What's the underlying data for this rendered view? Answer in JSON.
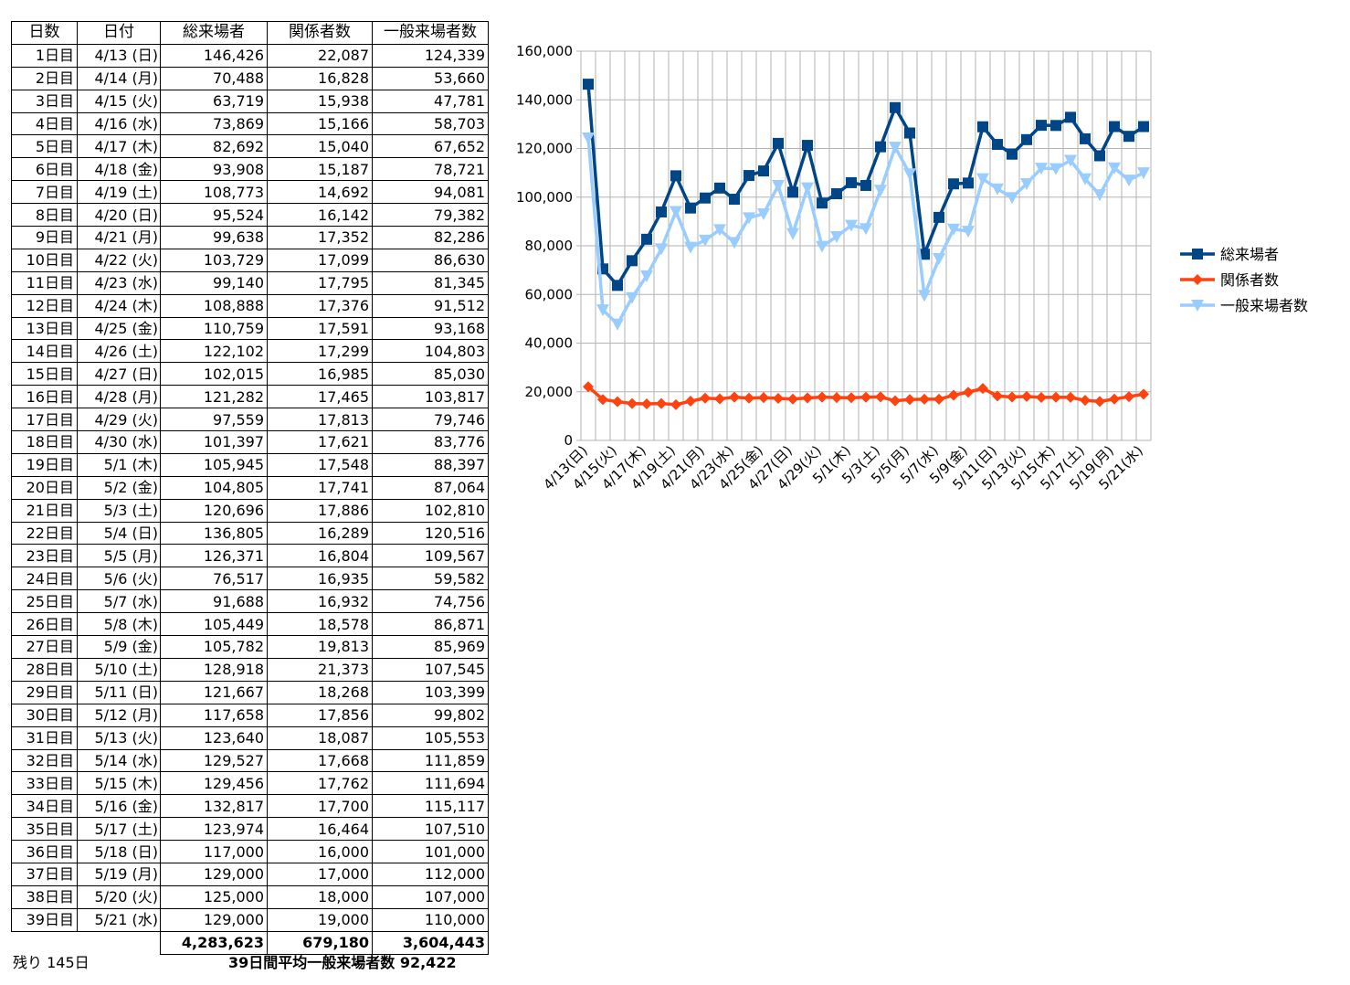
{
  "table": {
    "headers": [
      "日数",
      "日付",
      "総来場者",
      "関係者数",
      "一般来場者数"
    ],
    "rows": [
      [
        "1日目",
        "4/13 (日)",
        "146,426",
        "22,087",
        "124,339"
      ],
      [
        "2日目",
        "4/14 (月)",
        "70,488",
        "16,828",
        "53,660"
      ],
      [
        "3日目",
        "4/15 (火)",
        "63,719",
        "15,938",
        "47,781"
      ],
      [
        "4日目",
        "4/16 (水)",
        "73,869",
        "15,166",
        "58,703"
      ],
      [
        "5日目",
        "4/17 (木)",
        "82,692",
        "15,040",
        "67,652"
      ],
      [
        "6日目",
        "4/18 (金)",
        "93,908",
        "15,187",
        "78,721"
      ],
      [
        "7日目",
        "4/19 (土)",
        "108,773",
        "14,692",
        "94,081"
      ],
      [
        "8日目",
        "4/20 (日)",
        "95,524",
        "16,142",
        "79,382"
      ],
      [
        "9日目",
        "4/21 (月)",
        "99,638",
        "17,352",
        "82,286"
      ],
      [
        "10日目",
        "4/22 (火)",
        "103,729",
        "17,099",
        "86,630"
      ],
      [
        "11日目",
        "4/23 (水)",
        "99,140",
        "17,795",
        "81,345"
      ],
      [
        "12日目",
        "4/24 (木)",
        "108,888",
        "17,376",
        "91,512"
      ],
      [
        "13日目",
        "4/25 (金)",
        "110,759",
        "17,591",
        "93,168"
      ],
      [
        "14日目",
        "4/26 (土)",
        "122,102",
        "17,299",
        "104,803"
      ],
      [
        "15日目",
        "4/27 (日)",
        "102,015",
        "16,985",
        "85,030"
      ],
      [
        "16日目",
        "4/28 (月)",
        "121,282",
        "17,465",
        "103,817"
      ],
      [
        "17日目",
        "4/29 (火)",
        "97,559",
        "17,813",
        "79,746"
      ],
      [
        "18日目",
        "4/30 (水)",
        "101,397",
        "17,621",
        "83,776"
      ],
      [
        "19日目",
        "5/1 (木)",
        "105,945",
        "17,548",
        "88,397"
      ],
      [
        "20日目",
        "5/2 (金)",
        "104,805",
        "17,741",
        "87,064"
      ],
      [
        "21日目",
        "5/3 (土)",
        "120,696",
        "17,886",
        "102,810"
      ],
      [
        "22日目",
        "5/4 (日)",
        "136,805",
        "16,289",
        "120,516"
      ],
      [
        "23日目",
        "5/5 (月)",
        "126,371",
        "16,804",
        "109,567"
      ],
      [
        "24日目",
        "5/6 (火)",
        "76,517",
        "16,935",
        "59,582"
      ],
      [
        "25日目",
        "5/7 (水)",
        "91,688",
        "16,932",
        "74,756"
      ],
      [
        "26日目",
        "5/8 (木)",
        "105,449",
        "18,578",
        "86,871"
      ],
      [
        "27日目",
        "5/9 (金)",
        "105,782",
        "19,813",
        "85,969"
      ],
      [
        "28日目",
        "5/10 (土)",
        "128,918",
        "21,373",
        "107,545"
      ],
      [
        "29日目",
        "5/11 (日)",
        "121,667",
        "18,268",
        "103,399"
      ],
      [
        "30日目",
        "5/12 (月)",
        "117,658",
        "17,856",
        "99,802"
      ],
      [
        "31日目",
        "5/13 (火)",
        "123,640",
        "18,087",
        "105,553"
      ],
      [
        "32日目",
        "5/14 (水)",
        "129,527",
        "17,668",
        "111,859"
      ],
      [
        "33日目",
        "5/15 (木)",
        "129,456",
        "17,762",
        "111,694"
      ],
      [
        "34日目",
        "5/16 (金)",
        "132,817",
        "17,700",
        "115,117"
      ],
      [
        "35日目",
        "5/17 (土)",
        "123,974",
        "16,464",
        "107,510"
      ],
      [
        "36日目",
        "5/18 (日)",
        "117,000",
        "16,000",
        "101,000"
      ],
      [
        "37日目",
        "5/19 (月)",
        "129,000",
        "17,000",
        "112,000"
      ],
      [
        "38日目",
        "5/20 (火)",
        "125,000",
        "18,000",
        "107,000"
      ],
      [
        "39日目",
        "5/21 (水)",
        "129,000",
        "19,000",
        "110,000"
      ]
    ],
    "totals": [
      "4,283,623",
      "679,180",
      "3,604,443"
    ]
  },
  "footer": {
    "remaining": "残り 145日",
    "average": "39日間平均一般来場者数 92,422"
  },
  "chart_data": {
    "type": "line",
    "ylim": [
      0,
      160000
    ],
    "yticks": [
      "0",
      "20,000",
      "40,000",
      "60,000",
      "80,000",
      "100,000",
      "120,000",
      "140,000",
      "160,000"
    ],
    "ytick_values": [
      0,
      20000,
      40000,
      60000,
      80000,
      100000,
      120000,
      140000,
      160000
    ],
    "grid": true,
    "legend_position": "right",
    "x": [
      "4/13(日)",
      "4/14(月)",
      "4/15(火)",
      "4/16(水)",
      "4/17(木)",
      "4/18(金)",
      "4/19(土)",
      "4/20(日)",
      "4/21(月)",
      "4/22(火)",
      "4/23(水)",
      "4/24(木)",
      "4/25(金)",
      "4/26(土)",
      "4/27(日)",
      "4/28(月)",
      "4/29(火)",
      "4/30(水)",
      "5/1(木)",
      "5/2(金)",
      "5/3(土)",
      "5/4(日)",
      "5/5(月)",
      "5/6(火)",
      "5/7(水)",
      "5/8(木)",
      "5/9(金)",
      "5/10(土)",
      "5/11(日)",
      "5/12(月)",
      "5/13(火)",
      "5/14(水)",
      "5/15(木)",
      "5/16(金)",
      "5/17(土)",
      "5/18(日)",
      "5/19(月)",
      "5/20(火)",
      "5/21(水)"
    ],
    "xtick_labels": [
      "4/13(日)",
      "4/15(火)",
      "4/17(木)",
      "4/19(土)",
      "4/21(月)",
      "4/23(水)",
      "4/25(金)",
      "4/27(日)",
      "4/29(火)",
      "5/1(木)",
      "5/3(土)",
      "5/5(月)",
      "5/7(水)",
      "5/9(金)",
      "5/11(日)",
      "5/13(火)",
      "5/15(木)",
      "5/17(土)",
      "5/19(月)",
      "5/21(水)"
    ],
    "series": [
      {
        "name": "総来場者",
        "color": "#004586",
        "marker": "square",
        "values": [
          146426,
          70488,
          63719,
          73869,
          82692,
          93908,
          108773,
          95524,
          99638,
          103729,
          99140,
          108888,
          110759,
          122102,
          102015,
          121282,
          97559,
          101397,
          105945,
          104805,
          120696,
          136805,
          126371,
          76517,
          91688,
          105449,
          105782,
          128918,
          121667,
          117658,
          123640,
          129527,
          129456,
          132817,
          123974,
          117000,
          129000,
          125000,
          129000
        ]
      },
      {
        "name": "関係者数",
        "color": "#ff420e",
        "marker": "diamond",
        "values": [
          22087,
          16828,
          15938,
          15166,
          15040,
          15187,
          14692,
          16142,
          17352,
          17099,
          17795,
          17376,
          17591,
          17299,
          16985,
          17465,
          17813,
          17621,
          17548,
          17741,
          17886,
          16289,
          16804,
          16935,
          16932,
          18578,
          19813,
          21373,
          18268,
          17856,
          18087,
          17668,
          17762,
          17700,
          16464,
          16000,
          17000,
          18000,
          19000
        ]
      },
      {
        "name": "一般来場者数",
        "color": "#99ccff",
        "marker": "triangle-down",
        "values": [
          124339,
          53660,
          47781,
          58703,
          67652,
          78721,
          94081,
          79382,
          82286,
          86630,
          81345,
          91512,
          93168,
          104803,
          85030,
          103817,
          79746,
          83776,
          88397,
          87064,
          102810,
          120516,
          109567,
          59582,
          74756,
          86871,
          85969,
          107545,
          103399,
          99802,
          105553,
          111859,
          111694,
          115117,
          107510,
          101000,
          112000,
          107000,
          110000
        ]
      }
    ]
  }
}
